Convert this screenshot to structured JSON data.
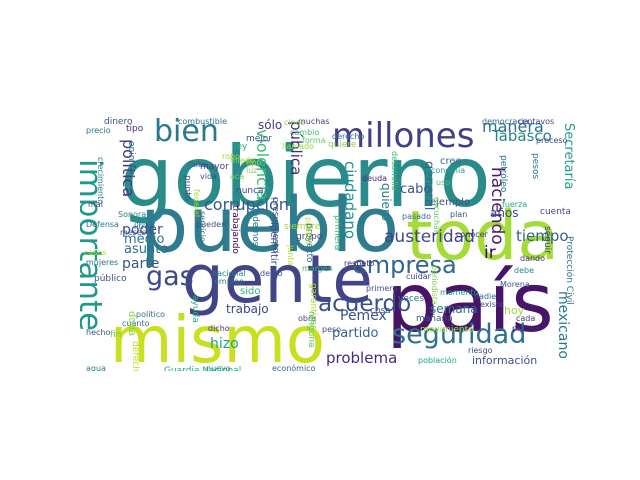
{
  "words": [
    {
      "text": "gobierno",
      "color": "#2a8c8a",
      "orientation": "h"
    },
    {
      "text": "pueblo",
      "color": "#2e7c8e",
      "orientation": "h"
    },
    {
      "text": "toda",
      "color": "#a5db36",
      "orientation": "h"
    },
    {
      "text": "gente",
      "color": "#414587",
      "orientation": "h"
    },
    {
      "text": "país",
      "color": "#481467",
      "orientation": "h"
    },
    {
      "text": "mismo",
      "color": "#c8e020",
      "orientation": "h"
    },
    {
      "text": "millones",
      "color": "#433e85",
      "orientation": "h"
    },
    {
      "text": "bien",
      "color": "#2a788e",
      "orientation": "h"
    },
    {
      "text": "importante",
      "color": "#1f9a8a",
      "orientation": "v"
    },
    {
      "text": "seguridad",
      "color": "#2c728e",
      "orientation": "h"
    },
    {
      "text": "empresa",
      "color": "#31668e",
      "orientation": "h"
    },
    {
      "text": "acuerdo",
      "color": "#3b518b",
      "orientation": "h"
    },
    {
      "text": "gas",
      "color": "#3e4a89",
      "orientation": "h"
    },
    {
      "text": "austeridad",
      "color": "#3f4788",
      "orientation": "h"
    },
    {
      "text": "corrupción",
      "color": "#38588c",
      "orientation": "h"
    },
    {
      "text": "manera",
      "color": "#2d708e",
      "orientation": "h"
    },
    {
      "text": "Tabasco",
      "color": "#25858e",
      "orientation": "h"
    },
    {
      "text": "política",
      "color": "#453781",
      "orientation": "v"
    },
    {
      "text": "pública",
      "color": "#46307e",
      "orientation": "v"
    },
    {
      "text": "violencia",
      "color": "#3bbb75",
      "orientation": "v"
    },
    {
      "text": "ciudadano",
      "color": "#21908d",
      "orientation": "v"
    },
    {
      "text": "Secretaría",
      "color": "#1f9e89",
      "orientation": "v"
    },
    {
      "text": "sólo",
      "color": "#443a83",
      "orientation": "h"
    },
    {
      "text": "poder",
      "color": "#3e4c8a",
      "orientation": "h"
    },
    {
      "text": "medio",
      "color": "#2d718e",
      "orientation": "h"
    },
    {
      "text": "asunto",
      "color": "#2e6f8e",
      "orientation": "h"
    },
    {
      "text": "parte",
      "color": "#39568c",
      "orientation": "h"
    },
    {
      "text": "trabajo",
      "color": "#404588",
      "orientation": "h"
    },
    {
      "text": "problema",
      "color": "#472c7a",
      "orientation": "h"
    },
    {
      "text": "partido",
      "color": "#32658e",
      "orientation": "h"
    },
    {
      "text": "Pemex",
      "color": "#3b528b",
      "orientation": "h"
    },
    {
      "text": "hizo",
      "color": "#20a386",
      "orientation": "h"
    },
    {
      "text": "tiempo",
      "color": "#32658e",
      "orientation": "h"
    },
    {
      "text": "cabo",
      "color": "#3a548c",
      "orientation": "h"
    },
    {
      "text": "general",
      "color": "#2f6c8e",
      "orientation": "v"
    },
    {
      "text": "quiero",
      "color": "#287c8e",
      "orientation": "v"
    },
    {
      "text": "haciendo",
      "color": "#481a6c",
      "orientation": "v"
    },
    {
      "text": "años",
      "color": "#3e4989",
      "orientation": "h"
    },
    {
      "text": "semana",
      "color": "#2a768e",
      "orientation": "h"
    },
    {
      "text": "ir",
      "color": "#440154",
      "orientation": "h"
    },
    {
      "text": "mexicano",
      "color": "#29798e",
      "orientation": "v"
    },
    {
      "text": "información",
      "color": "#3c4f8a",
      "orientation": "h"
    },
    {
      "text": "ejemplo",
      "color": "#3a548c",
      "orientation": "h"
    },
    {
      "text": "creo",
      "color": "#2c718e",
      "orientation": "h"
    },
    {
      "text": "hoy",
      "color": "#a0da39",
      "orientation": "h"
    },
    {
      "text": "Guardia Nacional",
      "color": "#22a785",
      "orientation": "h"
    },
    {
      "text": "económico",
      "color": "#31668e",
      "orientation": "h"
    },
    {
      "text": "nuevo",
      "color": "#1f968b",
      "orientation": "h"
    },
    {
      "text": "agua",
      "color": "#2a788e",
      "orientation": "h"
    },
    {
      "text": "hecho",
      "color": "#3b528b",
      "orientation": "h"
    },
    {
      "text": "dicho",
      "color": "#46327e",
      "orientation": "h"
    },
    {
      "text": "cuánto",
      "color": "#2e6e8e",
      "orientation": "h"
    },
    {
      "text": "político",
      "color": "#2c728e",
      "orientation": "h"
    },
    {
      "text": "nacional",
      "color": "#25838e",
      "orientation": "h"
    },
    {
      "text": "delito",
      "color": "#3b528b",
      "orientation": "h"
    },
    {
      "text": "margen",
      "color": "#35b779",
      "orientation": "h"
    },
    {
      "text": "respeto",
      "color": "#472a7a",
      "orientation": "h"
    },
    {
      "text": "empleo",
      "color": "#2a778e",
      "orientation": "h"
    },
    {
      "text": "grupo",
      "color": "#3f4889",
      "orientation": "h"
    },
    {
      "text": "mejor",
      "color": "#38588c",
      "orientation": "h"
    },
    {
      "text": "dinero",
      "color": "#3c508b",
      "orientation": "h"
    },
    {
      "text": "tipo",
      "color": "#482878",
      "orientation": "h"
    },
    {
      "text": "precio",
      "color": "#2d708e",
      "orientation": "h"
    },
    {
      "text": "combustible",
      "color": "#2e6e8e",
      "orientation": "h"
    },
    {
      "text": "muchas",
      "color": "#443983",
      "orientation": "h"
    },
    {
      "text": "democracia",
      "color": "#31688e",
      "orientation": "h"
    },
    {
      "text": "centavos",
      "color": "#404688",
      "orientation": "h"
    },
    {
      "text": "proceso",
      "color": "#3d4d8a",
      "orientation": "h"
    },
    {
      "text": "economía",
      "color": "#1f9f88",
      "orientation": "h"
    },
    {
      "text": "petróleo",
      "color": "#2c738e",
      "orientation": "v"
    },
    {
      "text": "pesos",
      "color": "#2b748e",
      "orientation": "v"
    },
    {
      "text": "fuerza",
      "color": "#22a884",
      "orientation": "h"
    },
    {
      "text": "cuenta",
      "color": "#3f4889",
      "orientation": "h"
    },
    {
      "text": "dando",
      "color": "#46317e",
      "orientation": "h"
    },
    {
      "text": "debe",
      "color": "#25858e",
      "orientation": "h"
    },
    {
      "text": "seguir",
      "color": "#3e4a89",
      "orientation": "v"
    },
    {
      "text": "Protección Civil",
      "color": "#2d708e",
      "orientation": "v"
    },
    {
      "text": "Morena",
      "color": "#39568c",
      "orientation": "h"
    },
    {
      "text": "nadie",
      "color": "#2f6b8e",
      "orientation": "h"
    },
    {
      "text": "existe",
      "color": "#3d4e8a",
      "orientation": "h"
    },
    {
      "text": "prensa",
      "color": "#482475",
      "orientation": "h"
    },
    {
      "text": "cada",
      "color": "#46337f",
      "orientation": "h"
    },
    {
      "text": "riesgo",
      "color": "#3e4a89",
      "orientation": "h"
    },
    {
      "text": "población",
      "color": "#1fa088",
      "orientation": "h"
    },
    {
      "text": "conocer",
      "color": "#453581",
      "orientation": "h"
    },
    {
      "text": "plan",
      "color": "#3c4f8a",
      "orientation": "h"
    },
    {
      "text": "pasado",
      "color": "#2e6d8e",
      "orientation": "h"
    },
    {
      "text": "veces",
      "color": "#2a768e",
      "orientation": "h"
    },
    {
      "text": "primero",
      "color": "#3a538b",
      "orientation": "h"
    },
    {
      "text": "cuidar",
      "color": "#404688",
      "orientation": "h"
    },
    {
      "text": "momento",
      "color": "#1fa188",
      "orientation": "h"
    },
    {
      "text": "mañana",
      "color": "#38588c",
      "orientation": "h"
    },
    {
      "text": "cosa",
      "color": "#39558c",
      "orientation": "h"
    },
    {
      "text": "peso",
      "color": "#3d4e8a",
      "orientation": "h"
    },
    {
      "text": "obra",
      "color": "#424186",
      "orientation": "h"
    },
    {
      "text": "deuda",
      "color": "#482173",
      "orientation": "h"
    },
    {
      "text": "derecho",
      "color": "#2e6d8e",
      "orientation": "h"
    },
    {
      "text": "presupuesto",
      "color": "#3a548c",
      "orientation": "v"
    },
    {
      "text": "Sonora",
      "color": "#26818e",
      "orientation": "h"
    },
    {
      "text": "Defensa",
      "color": "#2a778e",
      "orientation": "h"
    },
    {
      "text": "litro",
      "color": "#2f6b8e",
      "orientation": "h"
    },
    {
      "text": "nunca",
      "color": "#3f4788",
      "orientation": "h"
    },
    {
      "text": "servicio",
      "color": "#2f6c8e",
      "orientation": "v"
    },
    {
      "text": "meses",
      "color": "#3b528b",
      "orientation": "h"
    },
    {
      "text": "mujeres",
      "color": "#2e6e8e",
      "orientation": "h"
    },
    {
      "text": "público",
      "color": "#3b518b",
      "orientation": "h"
    },
    {
      "text": "crecimiento",
      "color": "#29798e",
      "orientation": "v"
    },
    {
      "text": "opinión",
      "color": "#2a788e",
      "orientation": "v"
    },
    {
      "text": "mayor",
      "color": "#433d84",
      "orientation": "h"
    },
    {
      "text": "vida",
      "color": "#3c4f8a",
      "orientation": "h"
    },
    {
      "text": "pueden",
      "color": "#3d4e8a",
      "orientation": "h"
    },
    {
      "text": "mal",
      "color": "#453882",
      "orientation": "h"
    },
    {
      "text": "falta",
      "color": "#32658e",
      "orientation": "h"
    },
    {
      "text": "punto",
      "color": "#3c508b",
      "orientation": "v"
    },
    {
      "text": "trabajando",
      "color": "#440256",
      "orientation": "v"
    },
    {
      "text": "podemos",
      "color": "#2b758e",
      "orientation": "v"
    },
    {
      "text": "permitir",
      "color": "#3a548c",
      "orientation": "v"
    },
    {
      "text": "siempre",
      "color": "#a0da39",
      "orientation": "h"
    },
    {
      "text": "proyecto",
      "color": "#2d708e",
      "orientation": "v"
    },
    {
      "text": "primera",
      "color": "#3aba76",
      "orientation": "v"
    },
    {
      "text": "ayuda",
      "color": "#2db27d",
      "orientation": "v"
    },
    {
      "text": "garantizar",
      "color": "#a8db34",
      "orientation": "v"
    },
    {
      "text": "ninguna",
      "color": "#5cc863",
      "orientation": "v"
    },
    {
      "text": "escuchar",
      "color": "#6ccd5a",
      "orientation": "v"
    },
    {
      "text": "movimiento",
      "color": "#a5db36",
      "orientation": "h"
    },
    {
      "text": "periodista",
      "color": "#7fd34e",
      "orientation": "v"
    },
    {
      "text": "duda",
      "color": "#86d549",
      "orientation": "v"
    },
    {
      "text": "fin",
      "color": "#6ece58",
      "orientation": "h"
    },
    {
      "text": "robo",
      "color": "#a2da37",
      "orientation": "h"
    },
    {
      "text": "ley",
      "color": "#29af7f",
      "orientation": "h"
    },
    {
      "text": "cinco",
      "color": "#8bd646",
      "orientation": "h"
    },
    {
      "text": "cambio",
      "color": "#3dbc74",
      "orientation": "h"
    },
    {
      "text": "forma",
      "color": "#5ec962",
      "orientation": "h"
    },
    {
      "text": "llamado",
      "color": "#95d840",
      "orientation": "h"
    },
    {
      "text": "casos",
      "color": "#b5de2b",
      "orientation": "h"
    },
    {
      "text": "miedo",
      "color": "#9bd93c",
      "orientation": "h"
    },
    {
      "text": "uso",
      "color": "#4ac16d",
      "orientation": "h"
    },
    {
      "text": "acá",
      "color": "#75d054",
      "orientation": "h"
    },
    {
      "text": "luz",
      "color": "#7ad151",
      "orientation": "h"
    },
    {
      "text": "pueblo",
      "color": "#b8de29",
      "orientation": "v"
    },
    {
      "text": "desarrollo",
      "color": "#3fbc73",
      "orientation": "v"
    },
    {
      "text": "junta",
      "color": "#c0df25",
      "orientation": "v"
    },
    {
      "text": "quiere",
      "color": "#90d743",
      "orientation": "h"
    },
    {
      "text": "derechos",
      "color": "#bddf26",
      "orientation": "v"
    },
    {
      "text": "sido",
      "color": "#35b779",
      "orientation": "h"
    },
    {
      "text": "federal",
      "color": "#a0da39",
      "orientation": "v"
    },
    {
      "text": "tipo",
      "color": "#8fd744",
      "orientation": "h"
    }
  ]
}
